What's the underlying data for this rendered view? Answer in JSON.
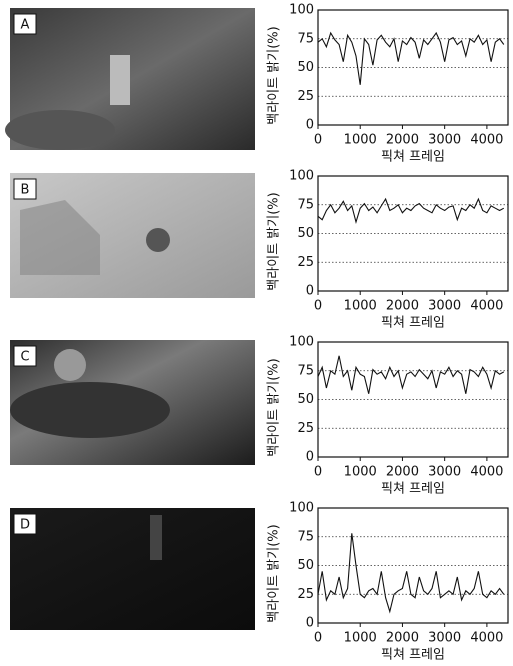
{
  "chart_data": [
    {
      "type": "line",
      "panel_label": "A",
      "ylabel": "백라이트 밝기(%)",
      "xlabel": "픽쳐 프레임",
      "x": [
        0,
        100,
        200,
        300,
        400,
        500,
        600,
        700,
        800,
        900,
        1000,
        1100,
        1200,
        1300,
        1400,
        1500,
        1600,
        1700,
        1800,
        1900,
        2000,
        2100,
        2200,
        2300,
        2400,
        2500,
        2600,
        2700,
        2800,
        2900,
        3000,
        3100,
        3200,
        3300,
        3400,
        3500,
        3600,
        3700,
        3800,
        3900,
        4000,
        4100,
        4200,
        4300,
        4400
      ],
      "values": [
        72,
        75,
        68,
        80,
        74,
        70,
        55,
        78,
        72,
        60,
        35,
        75,
        70,
        52,
        74,
        78,
        72,
        68,
        75,
        55,
        73,
        70,
        76,
        72,
        58,
        74,
        70,
        75,
        80,
        72,
        55,
        74,
        76,
        70,
        73,
        60,
        75,
        72,
        78,
        70,
        74,
        55,
        72,
        75,
        70
      ],
      "color": "#111",
      "xlim": [
        0,
        4500
      ],
      "xticks": [
        0,
        1000,
        2000,
        3000,
        4000
      ],
      "ylim": [
        0,
        100
      ],
      "yticks": [
        0,
        25,
        50,
        75,
        100
      ],
      "grid": true
    },
    {
      "type": "line",
      "panel_label": "B",
      "ylabel": "백라이트 밝기(%)",
      "xlabel": "픽쳐 프레임",
      "x": [
        0,
        100,
        200,
        300,
        400,
        500,
        600,
        700,
        800,
        900,
        1000,
        1100,
        1200,
        1300,
        1400,
        1500,
        1600,
        1700,
        1800,
        1900,
        2000,
        2100,
        2200,
        2300,
        2400,
        2500,
        2600,
        2700,
        2800,
        2900,
        3000,
        3100,
        3200,
        3300,
        3400,
        3500,
        3600,
        3700,
        3800,
        3900,
        4000,
        4100,
        4200,
        4300,
        4400
      ],
      "values": [
        65,
        62,
        70,
        75,
        68,
        72,
        78,
        70,
        74,
        60,
        72,
        76,
        70,
        73,
        68,
        74,
        80,
        70,
        72,
        75,
        68,
        72,
        70,
        74,
        76,
        72,
        70,
        68,
        75,
        72,
        70,
        73,
        74,
        62,
        72,
        70,
        75,
        72,
        80,
        70,
        68,
        74,
        72,
        70,
        72
      ],
      "color": "#111",
      "xlim": [
        0,
        4500
      ],
      "xticks": [
        0,
        1000,
        2000,
        3000,
        4000
      ],
      "ylim": [
        0,
        100
      ],
      "yticks": [
        0,
        25,
        50,
        75,
        100
      ],
      "grid": true
    },
    {
      "type": "line",
      "panel_label": "C",
      "ylabel": "백라이트 밝기(%)",
      "xlabel": "픽쳐 프레임",
      "x": [
        0,
        100,
        200,
        300,
        400,
        500,
        600,
        700,
        800,
        900,
        1000,
        1100,
        1200,
        1300,
        1400,
        1500,
        1600,
        1700,
        1800,
        1900,
        2000,
        2100,
        2200,
        2300,
        2400,
        2500,
        2600,
        2700,
        2800,
        2900,
        3000,
        3100,
        3200,
        3300,
        3400,
        3500,
        3600,
        3700,
        3800,
        3900,
        4000,
        4100,
        4200,
        4300,
        4400
      ],
      "values": [
        70,
        78,
        60,
        75,
        72,
        88,
        70,
        75,
        58,
        78,
        72,
        70,
        55,
        76,
        72,
        74,
        68,
        78,
        70,
        75,
        60,
        72,
        74,
        70,
        76,
        72,
        68,
        75,
        60,
        74,
        72,
        78,
        70,
        75,
        72,
        55,
        76,
        74,
        70,
        78,
        72,
        60,
        75,
        72,
        74
      ],
      "color": "#111",
      "xlim": [
        0,
        4500
      ],
      "xticks": [
        0,
        1000,
        2000,
        3000,
        4000
      ],
      "ylim": [
        0,
        100
      ],
      "yticks": [
        0,
        25,
        50,
        75,
        100
      ],
      "grid": true
    },
    {
      "type": "line",
      "panel_label": "D",
      "ylabel": "백라이트 밝기(%)",
      "xlabel": "픽쳐 프레임",
      "x": [
        0,
        100,
        200,
        300,
        400,
        500,
        600,
        700,
        800,
        900,
        1000,
        1100,
        1200,
        1300,
        1400,
        1500,
        1600,
        1700,
        1800,
        1900,
        2000,
        2100,
        2200,
        2300,
        2400,
        2500,
        2600,
        2700,
        2800,
        2900,
        3000,
        3100,
        3200,
        3300,
        3400,
        3500,
        3600,
        3700,
        3800,
        3900,
        4000,
        4100,
        4200,
        4300,
        4400
      ],
      "values": [
        25,
        45,
        20,
        28,
        25,
        40,
        22,
        30,
        78,
        50,
        25,
        22,
        28,
        30,
        25,
        45,
        22,
        10,
        25,
        28,
        30,
        45,
        25,
        22,
        40,
        28,
        25,
        30,
        45,
        22,
        25,
        28,
        25,
        40,
        20,
        28,
        25,
        30,
        45,
        25,
        22,
        28,
        25,
        30,
        25
      ],
      "color": "#111",
      "xlim": [
        0,
        4500
      ],
      "xticks": [
        0,
        1000,
        2000,
        3000,
        4000
      ],
      "ylim": [
        0,
        100
      ],
      "yticks": [
        0,
        25,
        50,
        75,
        100
      ],
      "grid": true
    }
  ]
}
